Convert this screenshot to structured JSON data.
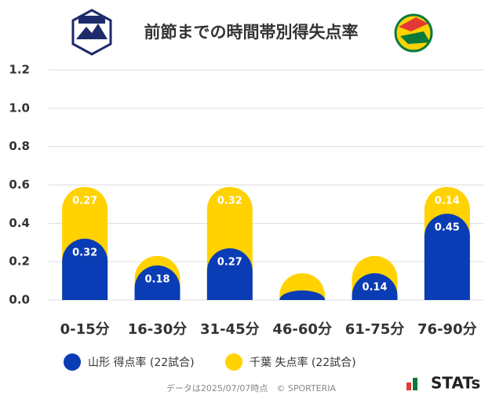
{
  "chart_data": {
    "type": "stacked-bar",
    "title": "前節までの時間帯別得失点率",
    "categories": [
      "0-15分",
      "16-30分",
      "31-45分",
      "46-60分",
      "61-75分",
      "76-90分"
    ],
    "series": [
      {
        "name": "山形 得点率 (22試合)",
        "color": "#0a3db5",
        "values": [
          0.32,
          0.18,
          0.27,
          0.05,
          0.14,
          0.45
        ],
        "value_labels": [
          "0.32",
          "0.18",
          "0.27",
          null,
          "0.14",
          "0.45"
        ]
      },
      {
        "name": "千葉 失点率 (22試合)",
        "color": "#ffd200",
        "values": [
          0.27,
          0.05,
          0.32,
          0.09,
          0.09,
          0.14
        ],
        "value_labels": [
          "0.27",
          null,
          "0.32",
          null,
          null,
          "0.14"
        ]
      }
    ],
    "ylim": [
      0,
      1.2
    ],
    "yticks": [
      {
        "value": 0,
        "label": "0.0"
      },
      0.2,
      0.4,
      0.6,
      0.8,
      {
        "value": 1,
        "label": "1.0"
      },
      1.2
    ],
    "grid": true,
    "footer": "データは2025/07/07時点　© SPORTERIA",
    "brand": "STATs"
  }
}
